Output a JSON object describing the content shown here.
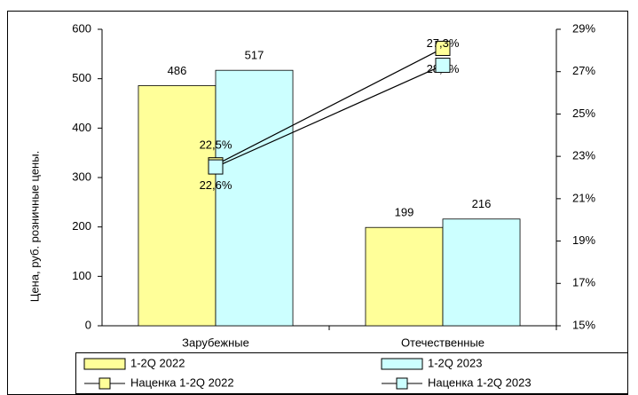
{
  "chart_data": {
    "type": "bar",
    "y_label": "Цена, руб. розничные цены.",
    "categories": [
      "Зарубежные",
      "Отечественные"
    ],
    "series": [
      {
        "name": "1-2Q 2022",
        "color": "#ffff99",
        "values": [
          486,
          199
        ]
      },
      {
        "name": "1-2Q 2023",
        "color": "#ccffff",
        "values": [
          517,
          216
        ]
      },
      {
        "name": "Наценка 1-2Q 2022",
        "type": "line",
        "axis": "y2",
        "color": "#ffff99",
        "values": [
          22.6,
          28.1
        ],
        "value_labels": [
          "22,6%",
          "28,1%"
        ]
      },
      {
        "name": "Наценка 1-2Q 2023",
        "type": "line",
        "axis": "y2",
        "color": "#ccffff",
        "values": [
          22.5,
          27.3
        ],
        "value_labels": [
          "22,5%",
          "27,3%"
        ]
      }
    ],
    "ylim": [
      0,
      600
    ],
    "yticks": [
      0,
      100,
      200,
      300,
      400,
      500,
      600
    ],
    "y2lim": [
      15,
      29
    ],
    "y2ticks": [
      {
        "value": 15,
        "label": "15%"
      },
      {
        "value": 17,
        "label": "17%"
      },
      {
        "value": 19,
        "label": "19%"
      },
      {
        "value": 21,
        "label": "21%"
      },
      {
        "value": 23,
        "label": "23%"
      },
      {
        "value": 25,
        "label": "25%"
      },
      {
        "value": 27,
        "label": "27%"
      },
      {
        "value": 29,
        "label": "29%"
      }
    ],
    "legend": "bottom"
  }
}
